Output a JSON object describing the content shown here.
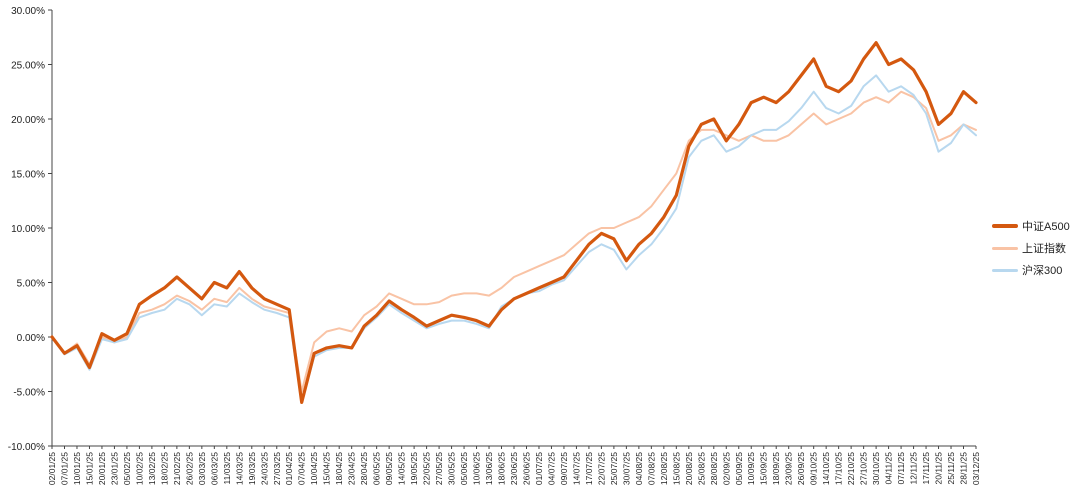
{
  "chart_data": {
    "type": "line",
    "title": "",
    "xlabel": "",
    "ylabel": "",
    "ylim": [
      -0.1,
      0.3
    ],
    "y_ticks": [
      "30.00%",
      "25.00%",
      "20.00%",
      "15.00%",
      "10.00%",
      "5.00%",
      "0.00%",
      "-5.00%",
      "-10.00%"
    ],
    "x_tick_labels": [
      "02/01/25",
      "07/01/25",
      "10/01/25",
      "15/01/25",
      "20/01/25",
      "23/01/25",
      "05/02/25",
      "10/02/25",
      "13/02/25",
      "18/02/25",
      "21/02/25",
      "26/02/25",
      "03/03/25",
      "06/03/25",
      "11/03/25",
      "14/03/25",
      "19/03/25",
      "24/03/25",
      "27/03/25",
      "01/04/25",
      "07/04/25",
      "10/04/25",
      "15/04/25",
      "18/04/25",
      "23/04/25",
      "28/04/25",
      "06/05/25",
      "09/05/25",
      "14/05/25",
      "19/05/25",
      "22/05/25",
      "27/05/25",
      "30/05/25",
      "05/06/25",
      "10/06/25",
      "13/06/25",
      "18/06/25",
      "23/06/25",
      "26/06/25",
      "01/07/25",
      "04/07/25",
      "09/07/25",
      "14/07/25",
      "17/07/25",
      "22/07/25",
      "25/07/25",
      "30/07/25",
      "04/08/25",
      "07/08/25",
      "12/08/25",
      "15/08/25",
      "20/08/25",
      "25/08/25",
      "28/08/25",
      "02/09/25",
      "05/09/25",
      "10/09/25",
      "15/09/25",
      "18/09/25",
      "23/09/25",
      "26/09/25",
      "09/10/25",
      "14/10/25",
      "17/10/25",
      "22/10/25",
      "27/10/25",
      "30/10/25",
      "04/11/25",
      "07/11/25",
      "12/11/25",
      "17/11/25",
      "20/11/25",
      "25/11/25",
      "28/11/25",
      "03/12/25"
    ],
    "grid": false,
    "legend_position": "right",
    "series": [
      {
        "name": "中证A500",
        "color": "#d4580f",
        "values": [
          0.0,
          -0.015,
          -0.008,
          -0.028,
          0.003,
          -0.003,
          0.003,
          0.03,
          0.038,
          0.045,
          0.055,
          0.045,
          0.035,
          0.05,
          0.045,
          0.06,
          0.045,
          0.035,
          0.03,
          0.025,
          -0.06,
          -0.015,
          -0.01,
          -0.008,
          -0.01,
          0.01,
          0.02,
          0.033,
          0.025,
          0.018,
          0.01,
          0.015,
          0.02,
          0.018,
          0.015,
          0.01,
          0.025,
          0.035,
          0.04,
          0.045,
          0.05,
          0.055,
          0.07,
          0.085,
          0.095,
          0.09,
          0.07,
          0.085,
          0.095,
          0.11,
          0.13,
          0.175,
          0.195,
          0.2,
          0.18,
          0.195,
          0.215,
          0.22,
          0.215,
          0.225,
          0.24,
          0.255,
          0.23,
          0.225,
          0.235,
          0.255,
          0.27,
          0.25,
          0.255,
          0.245,
          0.225,
          0.195,
          0.205,
          0.225,
          0.215
        ]
      },
      {
        "name": "上证指数",
        "color": "#f9c3a5",
        "values": [
          0.0,
          -0.015,
          -0.006,
          -0.025,
          0.0,
          -0.005,
          0.0,
          0.022,
          0.025,
          0.03,
          0.038,
          0.033,
          0.025,
          0.035,
          0.032,
          0.045,
          0.035,
          0.028,
          0.025,
          0.022,
          -0.05,
          -0.005,
          0.005,
          0.008,
          0.005,
          0.02,
          0.028,
          0.04,
          0.035,
          0.03,
          0.03,
          0.032,
          0.038,
          0.04,
          0.04,
          0.038,
          0.045,
          0.055,
          0.06,
          0.065,
          0.07,
          0.075,
          0.085,
          0.095,
          0.1,
          0.1,
          0.105,
          0.11,
          0.12,
          0.135,
          0.15,
          0.18,
          0.19,
          0.19,
          0.185,
          0.18,
          0.185,
          0.18,
          0.18,
          0.185,
          0.195,
          0.205,
          0.195,
          0.2,
          0.205,
          0.215,
          0.22,
          0.215,
          0.225,
          0.22,
          0.21,
          0.18,
          0.185,
          0.195,
          0.19
        ]
      },
      {
        "name": "沪深300",
        "color": "#b8d8ef",
        "values": [
          0.0,
          -0.016,
          -0.01,
          -0.03,
          -0.002,
          -0.005,
          -0.002,
          0.018,
          0.022,
          0.025,
          0.035,
          0.03,
          0.02,
          0.03,
          0.028,
          0.04,
          0.032,
          0.025,
          0.022,
          0.018,
          -0.06,
          -0.018,
          -0.012,
          -0.01,
          -0.01,
          0.008,
          0.018,
          0.03,
          0.022,
          0.015,
          0.008,
          0.012,
          0.015,
          0.015,
          0.012,
          0.008,
          0.028,
          0.035,
          0.04,
          0.042,
          0.048,
          0.052,
          0.065,
          0.078,
          0.085,
          0.08,
          0.062,
          0.075,
          0.085,
          0.1,
          0.118,
          0.165,
          0.18,
          0.185,
          0.17,
          0.175,
          0.185,
          0.19,
          0.19,
          0.198,
          0.21,
          0.225,
          0.21,
          0.205,
          0.212,
          0.23,
          0.24,
          0.225,
          0.23,
          0.222,
          0.205,
          0.17,
          0.178,
          0.195,
          0.185
        ]
      }
    ]
  }
}
